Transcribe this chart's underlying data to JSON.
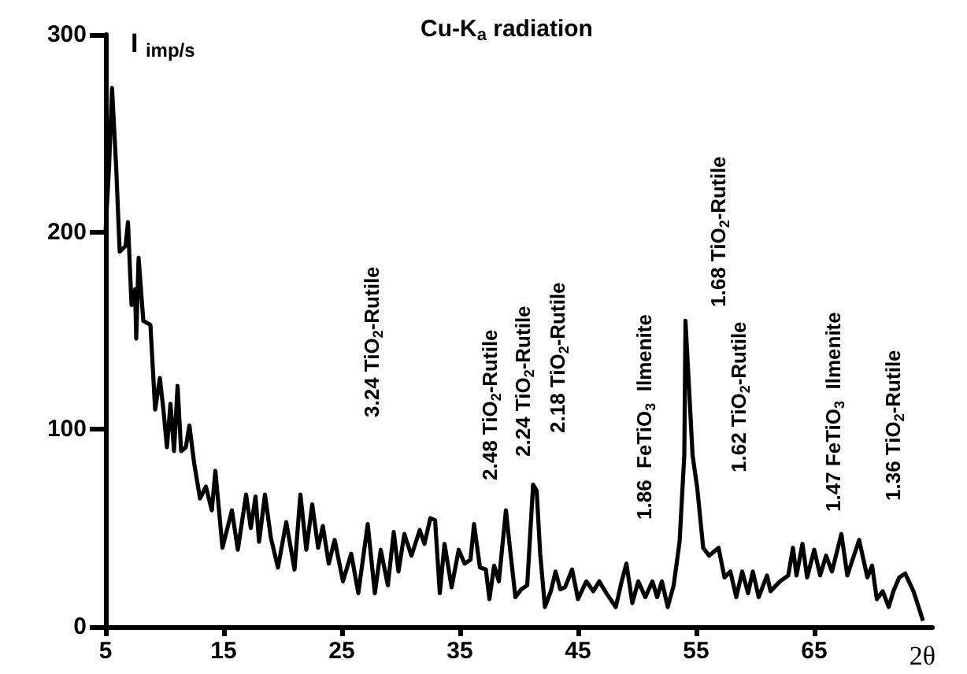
{
  "chart_data": {
    "type": "line",
    "title": "Cu-K$_{a}$ radiation",
    "xlabel": "2θ",
    "ylabel": "I $_{imp/s}$",
    "x": [
      5,
      5.3,
      5.55,
      5.9,
      6.2,
      6.7,
      6.9,
      7.2,
      7.5,
      7.6,
      7.8,
      8.2,
      8.8,
      9.2,
      9.6,
      9.9,
      10.2,
      10.5,
      10.8,
      11.1,
      11.4,
      11.8,
      12.1,
      12.5,
      13.0,
      13.5,
      14.0,
      14.3,
      14.9,
      15.7,
      16.2,
      16.9,
      17.3,
      17.7,
      18.0,
      18.5,
      19.0,
      19.6,
      20.3,
      21.0,
      21.5,
      22.0,
      22.5,
      23.0,
      23.4,
      23.9,
      24.4,
      25.1,
      25.8,
      26.4,
      27.2,
      27.8,
      28.3,
      28.9,
      29.4,
      29.8,
      30.3,
      30.9,
      31.6,
      32.0,
      32.5,
      32.9,
      33.3,
      33.7,
      34.3,
      34.9,
      35.4,
      35.9,
      36.2,
      36.7,
      37.2,
      37.5,
      37.9,
      38.3,
      38.9,
      39.2,
      39.7,
      40.2,
      40.7,
      41.2,
      41.5,
      41.8,
      42.2,
      42.7,
      43.1,
      43.5,
      43.9,
      44.5,
      45.0,
      45.7,
      46.3,
      46.8,
      47.4,
      48.2,
      48.7,
      49.1,
      49.6,
      50.1,
      50.7,
      51.3,
      51.7,
      52.1,
      52.6,
      53.1,
      53.6,
      54.0,
      54.1,
      54.7,
      55.1,
      55.6,
      56.1,
      56.9,
      57.4,
      57.9,
      58.4,
      58.9,
      59.4,
      59.8,
      60.3,
      61.0,
      61.3,
      62.1,
      62.8,
      63.2,
      63.5,
      64.0,
      64.4,
      65.0,
      65.5,
      66.0,
      66.5,
      67.3,
      67.8,
      68.8,
      69.5,
      69.9,
      70.3,
      70.8,
      71.3,
      71.7,
      72.2,
      72.7,
      73.4,
      74.0,
      74.2
    ],
    "series": [
      {
        "color": "#000000",
        "values": [
          200,
          233,
          273,
          233,
          190,
          193,
          205,
          163,
          171,
          146,
          187,
          155,
          153,
          110,
          126,
          110,
          91,
          113,
          89,
          122,
          89,
          91,
          102,
          83,
          65,
          71,
          59,
          79,
          40,
          59,
          39,
          67,
          50,
          66,
          43,
          67,
          45,
          30,
          53,
          29,
          67,
          39,
          62,
          40,
          51,
          32,
          44,
          23,
          37,
          17,
          52,
          17,
          39,
          21,
          48,
          28,
          47,
          36,
          49,
          42,
          55,
          54,
          17,
          42,
          20,
          39,
          32,
          34,
          52,
          30,
          29,
          14,
          31,
          23,
          59,
          42,
          15,
          19,
          21,
          72,
          69,
          37,
          10,
          18,
          28,
          19,
          20,
          29,
          14,
          23,
          18,
          23,
          17,
          10,
          23,
          32,
          12,
          23,
          15,
          23,
          15,
          23,
          10,
          21,
          43,
          87,
          155,
          87,
          70,
          40,
          36,
          40,
          25,
          28,
          15,
          28,
          17,
          28,
          15,
          26,
          18,
          23,
          26,
          40,
          26,
          42,
          25,
          39,
          26,
          36,
          28,
          47,
          26,
          44,
          25,
          31,
          14,
          18,
          10,
          18,
          25,
          27,
          18,
          7,
          3
        ]
      }
    ],
    "xlim": [
      5,
      75
    ],
    "xticks": [
      5,
      15,
      25,
      35,
      45,
      55,
      65
    ],
    "ylim": [
      0,
      300
    ],
    "yticks": [
      0,
      100,
      200,
      300
    ],
    "grid": false,
    "marker": "none",
    "line_style": "solid",
    "annotations": [
      "3.24 TiO$_{2}$-Rutile",
      "2.48 TiO$_{2}$-Rutile",
      "2.24 TiO$_{2}$-Rutile",
      "2.18 TiO$_{2}$-Rutile",
      "1.86  FeTiO$_{3}$  Ilmenite",
      "1.68 TiO$_{2}$-Rutile",
      "1.62 TiO$_{2}$-Rutile",
      "1.47 FeTiO$_{3}$  Ilmenite",
      "1.36 TiO$_{2}$-Rutile"
    ]
  }
}
